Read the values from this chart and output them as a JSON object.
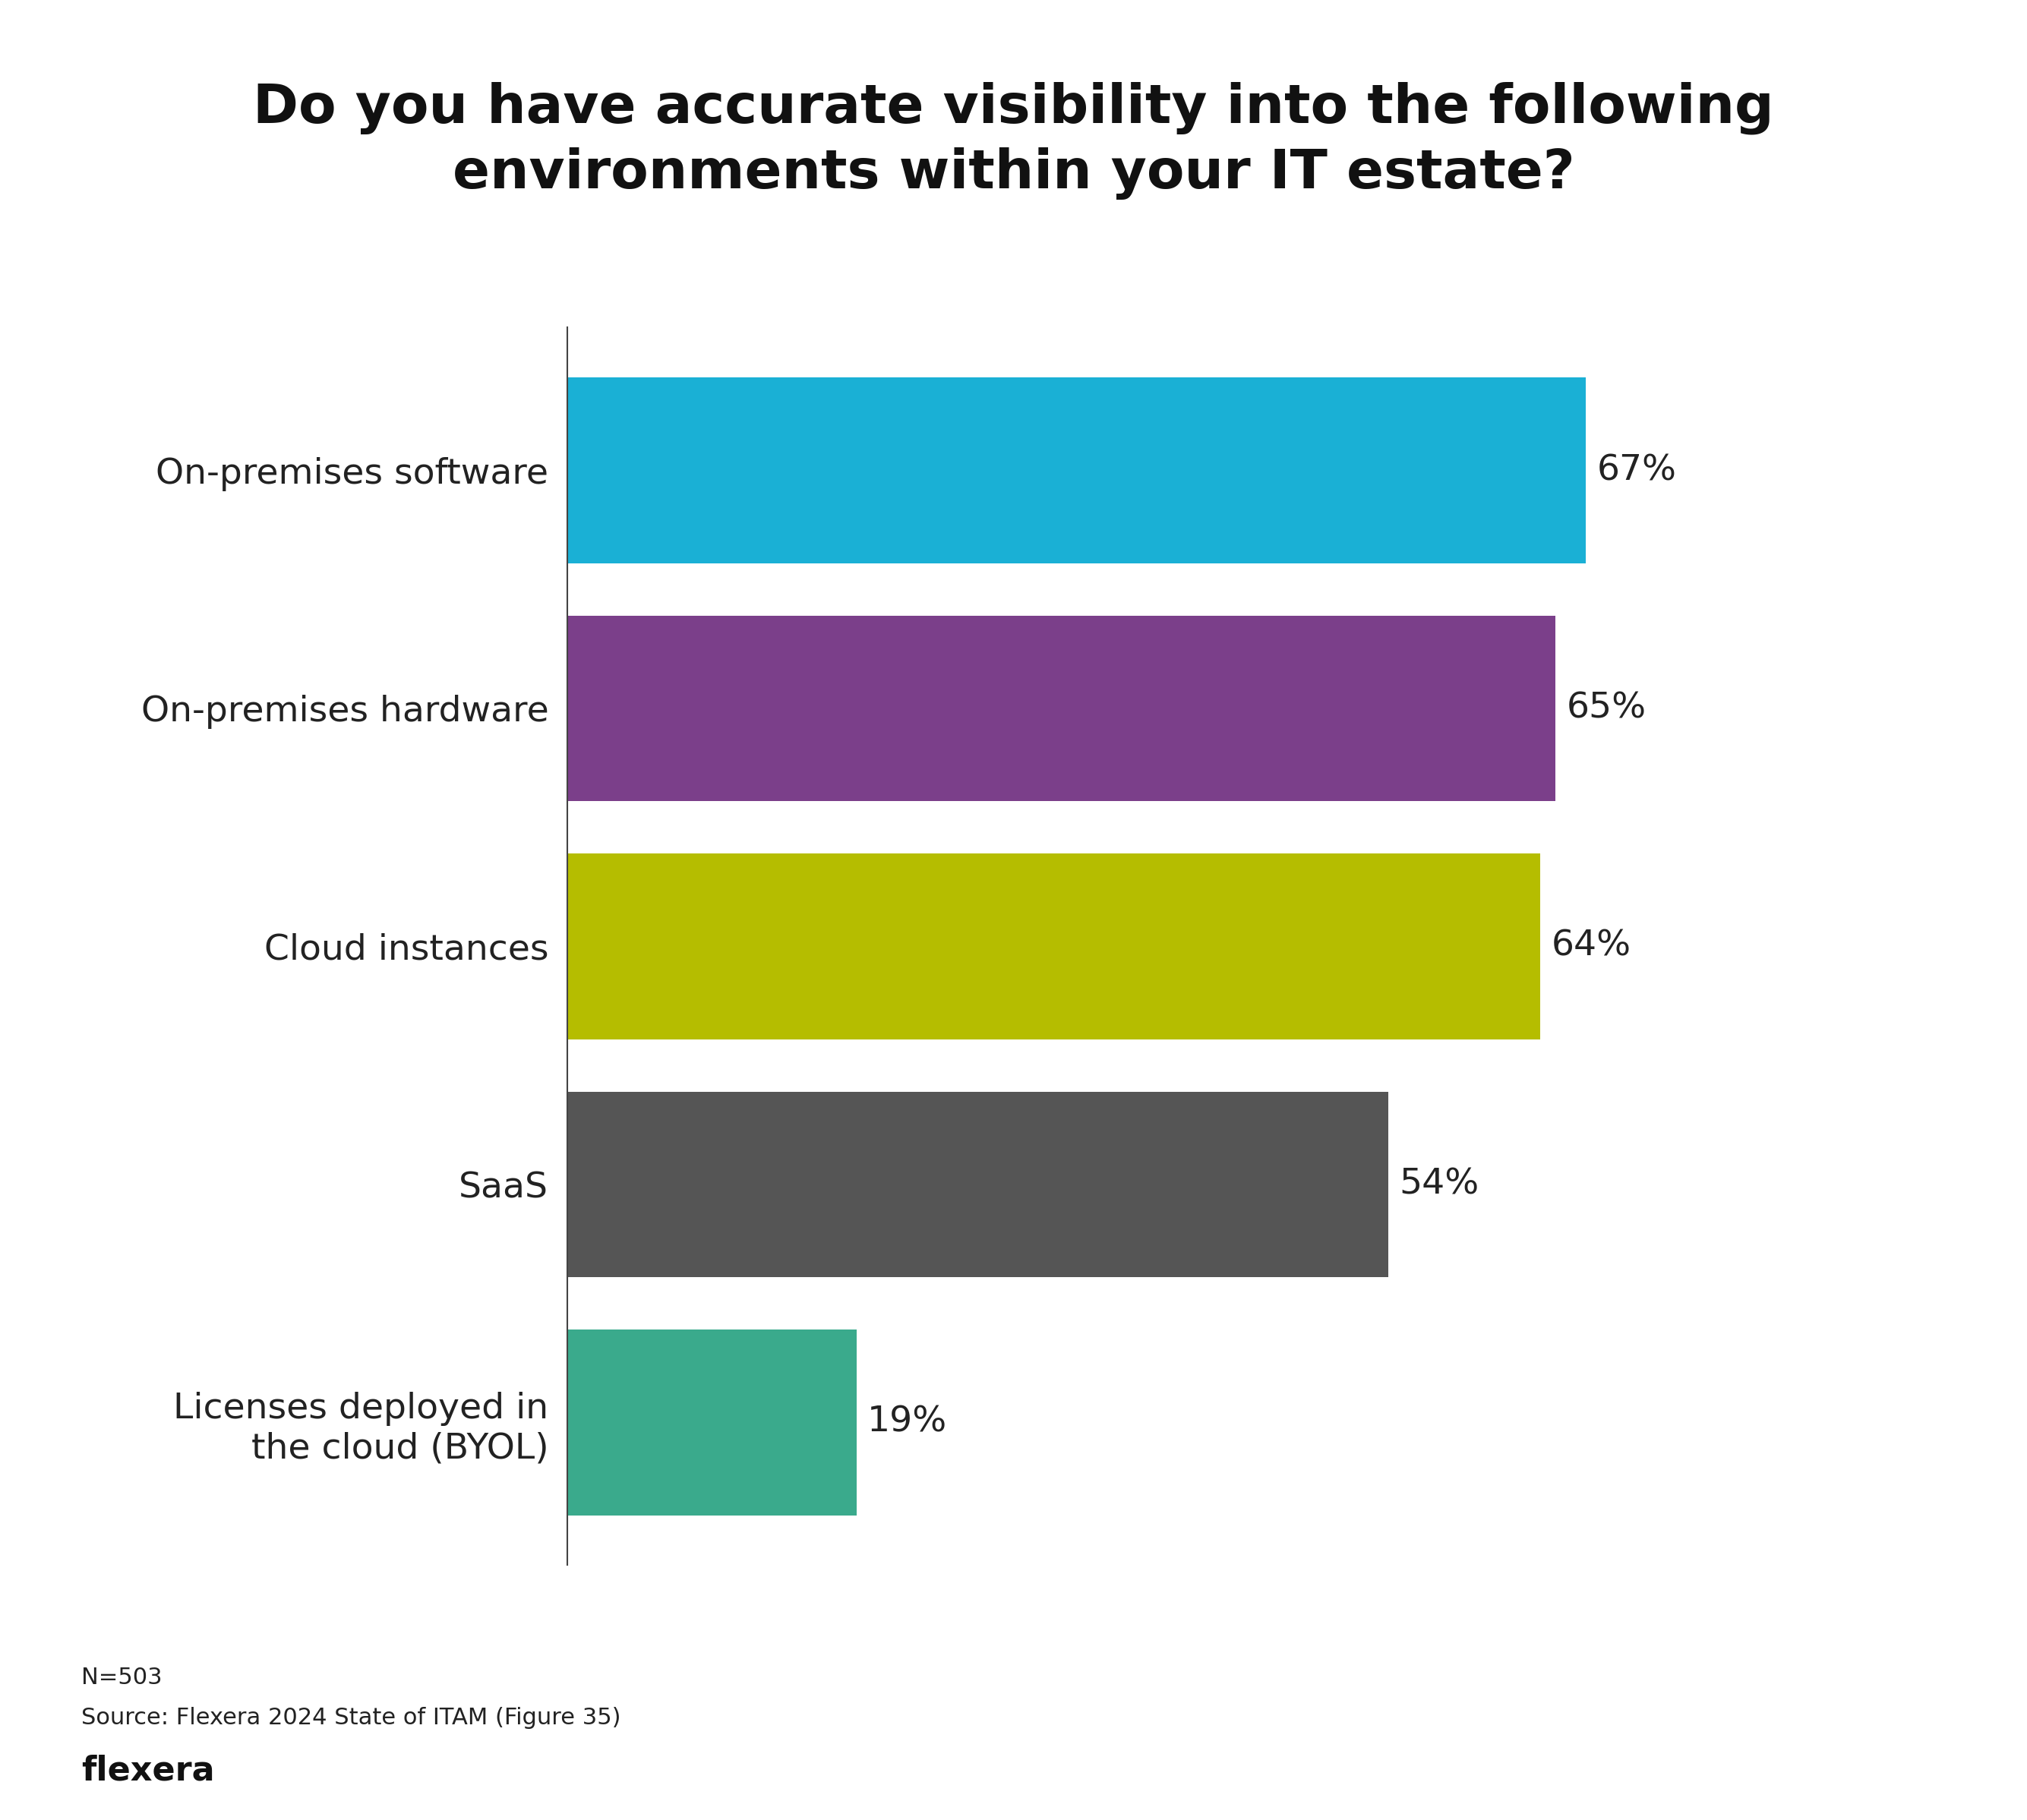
{
  "title": "Do you have accurate visibility into the following\nenvironments within your IT estate?",
  "categories": [
    "On-premises software",
    "On-premises hardware",
    "Cloud instances",
    "SaaS",
    "Licenses deployed in\nthe cloud (BYOL)"
  ],
  "values": [
    67,
    65,
    64,
    54,
    19
  ],
  "bar_colors": [
    "#1ab0d5",
    "#7b3f8a",
    "#b5bd00",
    "#555555",
    "#3aaa8c"
  ],
  "bar_labels": [
    "67%",
    "65%",
    "64%",
    "54%",
    "19%"
  ],
  "xlim": [
    0,
    80
  ],
  "background_color": "#ffffff",
  "title_fontsize": 52,
  "label_fontsize": 34,
  "bar_label_fontsize": 34,
  "footnote_n": "N=503",
  "footnote_source": "Source: Flexera 2024 State of ITAM (Figure 35)",
  "footnote_brand": "flexera",
  "footnote_fontsize": 22,
  "brand_fontsize": 32
}
